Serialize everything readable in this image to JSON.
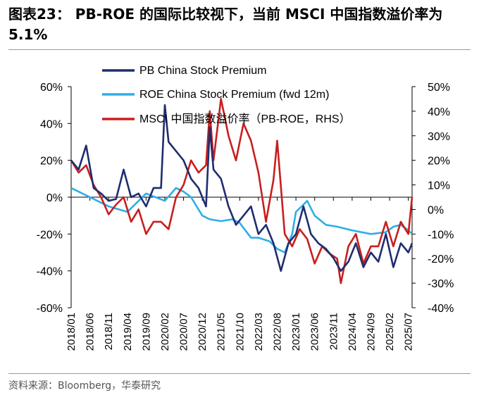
{
  "title_line1": "图表23： PB-ROE 的国际比较视下，当前 MSCI 中国指数溢价率为",
  "title_line2": "5.1%",
  "source": "资料来源：Bloomberg，华泰研究",
  "colors": {
    "pb": "#1f2d6e",
    "roe": "#2eaee6",
    "msci": "#c81e1e"
  },
  "chart_data": {
    "type": "line",
    "left_axis": {
      "ylim": [
        -60,
        60
      ],
      "ticks": [
        "60%",
        "40%",
        "20%",
        "0%",
        "-20%",
        "-40%",
        "-60%"
      ]
    },
    "right_axis": {
      "ylim": [
        -40,
        50
      ],
      "ticks": [
        "50%",
        "40%",
        "30%",
        "20%",
        "10%",
        "0%",
        "-10%",
        "-20%",
        "-30%",
        "-40%"
      ]
    },
    "x_ticks": [
      "2018/01",
      "2018/06",
      "2018/11",
      "2019/04",
      "2019/09",
      "2020/02",
      "2020/07",
      "2020/12",
      "2021/05",
      "2021/10",
      "2022/03",
      "2022/08",
      "2023/01",
      "2023/06",
      "2023/11",
      "2024/04",
      "2024/09",
      "2025/02",
      "2025/07"
    ],
    "series": [
      {
        "name": "PB China Stock Premium",
        "axis": "left",
        "x": [
          "2018/01",
          "2018/03",
          "2018/05",
          "2018/07",
          "2018/09",
          "2018/11",
          "2019/01",
          "2019/03",
          "2019/05",
          "2019/07",
          "2019/09",
          "2019/11",
          "2020/01",
          "2020/02",
          "2020/03",
          "2020/05",
          "2020/07",
          "2020/09",
          "2020/11",
          "2021/01",
          "2021/02",
          "2021/03",
          "2021/05",
          "2021/07",
          "2021/09",
          "2021/11",
          "2022/01",
          "2022/03",
          "2022/05",
          "2022/07",
          "2022/09",
          "2022/11",
          "2023/01",
          "2023/03",
          "2023/05",
          "2023/07",
          "2023/09",
          "2023/11",
          "2024/01",
          "2024/03",
          "2024/05",
          "2024/07",
          "2024/09",
          "2024/11",
          "2025/01",
          "2025/03",
          "2025/05",
          "2025/07",
          "2025/08"
        ],
        "values": [
          20,
          15,
          28,
          5,
          2,
          -2,
          -1,
          15,
          0,
          2,
          -5,
          5,
          5,
          50,
          30,
          25,
          20,
          10,
          5,
          -5,
          38,
          15,
          10,
          -5,
          -15,
          -10,
          -5,
          -20,
          -15,
          -25,
          -40,
          -25,
          -20,
          -5,
          -20,
          -25,
          -28,
          -33,
          -40,
          -35,
          -25,
          -38,
          -30,
          -35,
          -20,
          -38,
          -25,
          -30,
          -25
        ]
      },
      {
        "name": "ROE China Stock Premium (fwd 12m)",
        "axis": "left",
        "x": [
          "2018/01",
          "2018/06",
          "2018/11",
          "2019/04",
          "2019/09",
          "2020/02",
          "2020/05",
          "2020/07",
          "2020/09",
          "2020/12",
          "2021/02",
          "2021/05",
          "2021/08",
          "2021/10",
          "2022/01",
          "2022/03",
          "2022/06",
          "2022/08",
          "2022/10",
          "2022/12",
          "2023/01",
          "2023/03",
          "2023/04",
          "2023/06",
          "2023/09",
          "2023/12",
          "2024/04",
          "2024/09",
          "2025/01",
          "2025/03",
          "2025/05",
          "2025/07",
          "2025/08"
        ],
        "values": [
          5,
          0,
          -5,
          -8,
          2,
          -2,
          5,
          3,
          0,
          -10,
          -12,
          -13,
          -12,
          -14,
          -22,
          -22,
          -24,
          -28,
          -30,
          -20,
          -8,
          -4,
          -2,
          -10,
          -15,
          -16,
          -18,
          -20,
          -19,
          -16,
          -15,
          -18,
          -20
        ]
      },
      {
        "name": "MSCI 中国指数溢价率（PB-ROE，RHS）",
        "axis": "right",
        "x": [
          "2018/01",
          "2018/03",
          "2018/05",
          "2018/07",
          "2018/09",
          "2018/11",
          "2019/01",
          "2019/03",
          "2019/05",
          "2019/07",
          "2019/09",
          "2019/11",
          "2020/01",
          "2020/03",
          "2020/05",
          "2020/07",
          "2020/09",
          "2020/11",
          "2021/01",
          "2021/02",
          "2021/03",
          "2021/05",
          "2021/07",
          "2021/09",
          "2021/11",
          "2022/01",
          "2022/03",
          "2022/05",
          "2022/07",
          "2022/08",
          "2022/10",
          "2022/12",
          "2023/02",
          "2023/04",
          "2023/06",
          "2023/08",
          "2023/10",
          "2023/12",
          "2024/01",
          "2024/03",
          "2024/05",
          "2024/07",
          "2024/09",
          "2024/11",
          "2025/01",
          "2025/03",
          "2025/05",
          "2025/07",
          "2025/08"
        ],
        "values": [
          20,
          15,
          18,
          10,
          5,
          -2,
          2,
          5,
          -5,
          0,
          -10,
          -5,
          -5,
          -8,
          5,
          10,
          20,
          15,
          18,
          40,
          20,
          45,
          30,
          20,
          35,
          28,
          15,
          -5,
          12,
          28,
          -10,
          -15,
          -8,
          -12,
          -22,
          -15,
          -18,
          -20,
          -30,
          -15,
          -10,
          -22,
          -15,
          -15,
          -5,
          -15,
          -5,
          -10,
          5
        ]
      }
    ]
  }
}
